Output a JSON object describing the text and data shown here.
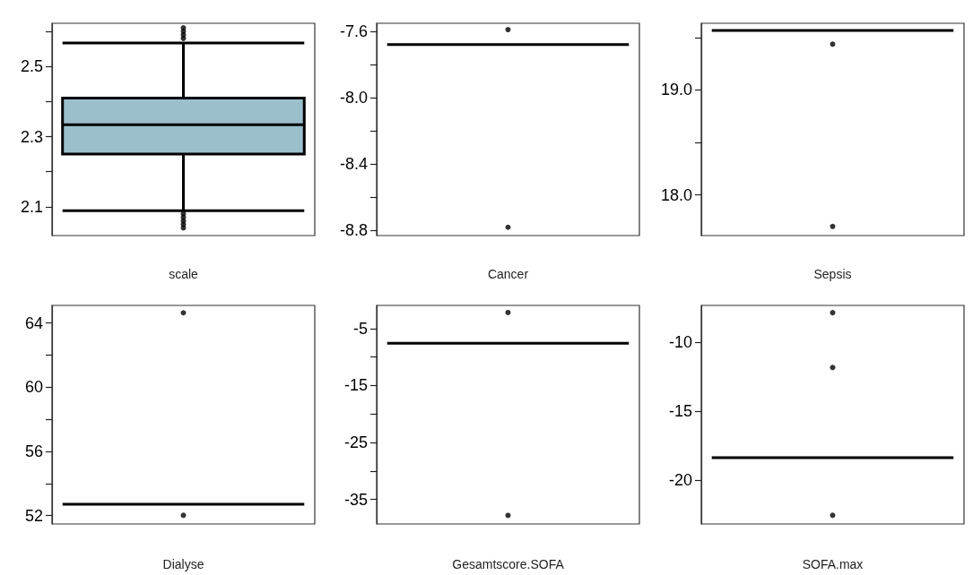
{
  "chart_data": [
    {
      "type": "box",
      "xlabel": "scale",
      "categories": [
        null
      ],
      "color": "#9bbfcc",
      "boxes": [
        {
          "low": 2.089,
          "q1": 2.25,
          "median": 2.334,
          "q3": 2.41,
          "high": 2.567,
          "outliers": [
            2.58,
            2.59,
            2.6,
            2.61,
            2.04,
            2.05,
            2.06,
            2.07,
            2.08
          ]
        }
      ],
      "ylim": [
        2.018,
        2.623
      ],
      "yticks": [
        2.1,
        {
          "value": 2.2,
          "label": null
        },
        2.3,
        {
          "value": 2.4,
          "label": null
        },
        2.5,
        {
          "value": 2.6,
          "label": null
        }
      ],
      "grid": false
    },
    {
      "type": "box",
      "xlabel": "Cancer",
      "categories": [
        null
      ],
      "boxes": [
        {
          "low": -7.68,
          "q1": -7.68,
          "median": -7.68,
          "q3": -7.68,
          "high": -7.68,
          "outliers": [
            -7.59,
            -8.78
          ]
        }
      ],
      "ylim": [
        -8.83,
        -7.552
      ],
      "yticks": [
        {
          "value": -8.8,
          "label": "-8.8"
        },
        {
          "value": -8.6,
          "label": null
        },
        {
          "value": -8.4,
          "label": "-8.4"
        },
        {
          "value": -8.2,
          "label": null
        },
        {
          "value": -8.0,
          "label": "-8.0"
        },
        {
          "value": -7.8,
          "label": null
        },
        {
          "value": -7.6,
          "label": "-7.6"
        }
      ],
      "grid": false
    },
    {
      "type": "box",
      "xlabel": "Sepsis",
      "categories": [
        null
      ],
      "boxes": [
        {
          "low": 19.567,
          "q1": 19.567,
          "median": 19.567,
          "q3": 19.567,
          "high": 19.567,
          "outliers": [
            19.436,
            17.7
          ]
        }
      ],
      "ylim": [
        17.613,
        19.635
      ],
      "yticks": [
        {
          "value": 18.0,
          "label": "18.0"
        },
        {
          "value": 18.5,
          "label": null
        },
        {
          "value": 19.0,
          "label": "19.0"
        },
        {
          "value": 19.5,
          "label": null
        }
      ],
      "grid": false
    },
    {
      "type": "box",
      "xlabel": "Dialyse",
      "categories": [
        null
      ],
      "boxes": [
        {
          "low": 52.71,
          "q1": 52.71,
          "median": 52.71,
          "q3": 52.71,
          "high": 52.71,
          "outliers": [
            64.63,
            52.02
          ]
        }
      ],
      "ylim": [
        51.48,
        65.09
      ],
      "yticks": [
        52,
        {
          "value": 54,
          "label": null
        },
        56,
        {
          "value": 58,
          "label": null
        },
        60,
        {
          "value": 62,
          "label": null
        },
        64
      ],
      "grid": false
    },
    {
      "type": "box",
      "xlabel": "Gesamtscore.SOFA",
      "categories": [
        null
      ],
      "boxes": [
        {
          "low": -7.6,
          "q1": -7.6,
          "median": -7.6,
          "q3": -7.6,
          "high": -7.6,
          "outliers": [
            -2.2,
            -37.8
          ]
        }
      ],
      "ylim": [
        -39.3,
        -0.95
      ],
      "yticks": [
        -35,
        {
          "value": -30,
          "label": null
        },
        -25,
        {
          "value": -20,
          "label": null
        },
        -15,
        {
          "value": -10,
          "label": null
        },
        -5
      ],
      "grid": false
    },
    {
      "type": "box",
      "xlabel": "SOFA.max",
      "categories": [
        null
      ],
      "boxes": [
        {
          "low": -18.39,
          "q1": -18.39,
          "median": -18.39,
          "q3": -18.39,
          "high": -18.39,
          "outliers": [
            -7.85,
            -11.83,
            -22.57
          ]
        }
      ],
      "ylim": [
        -23.2,
        -7.32
      ],
      "yticks": [
        -20,
        -15,
        -10
      ],
      "grid": false
    }
  ]
}
